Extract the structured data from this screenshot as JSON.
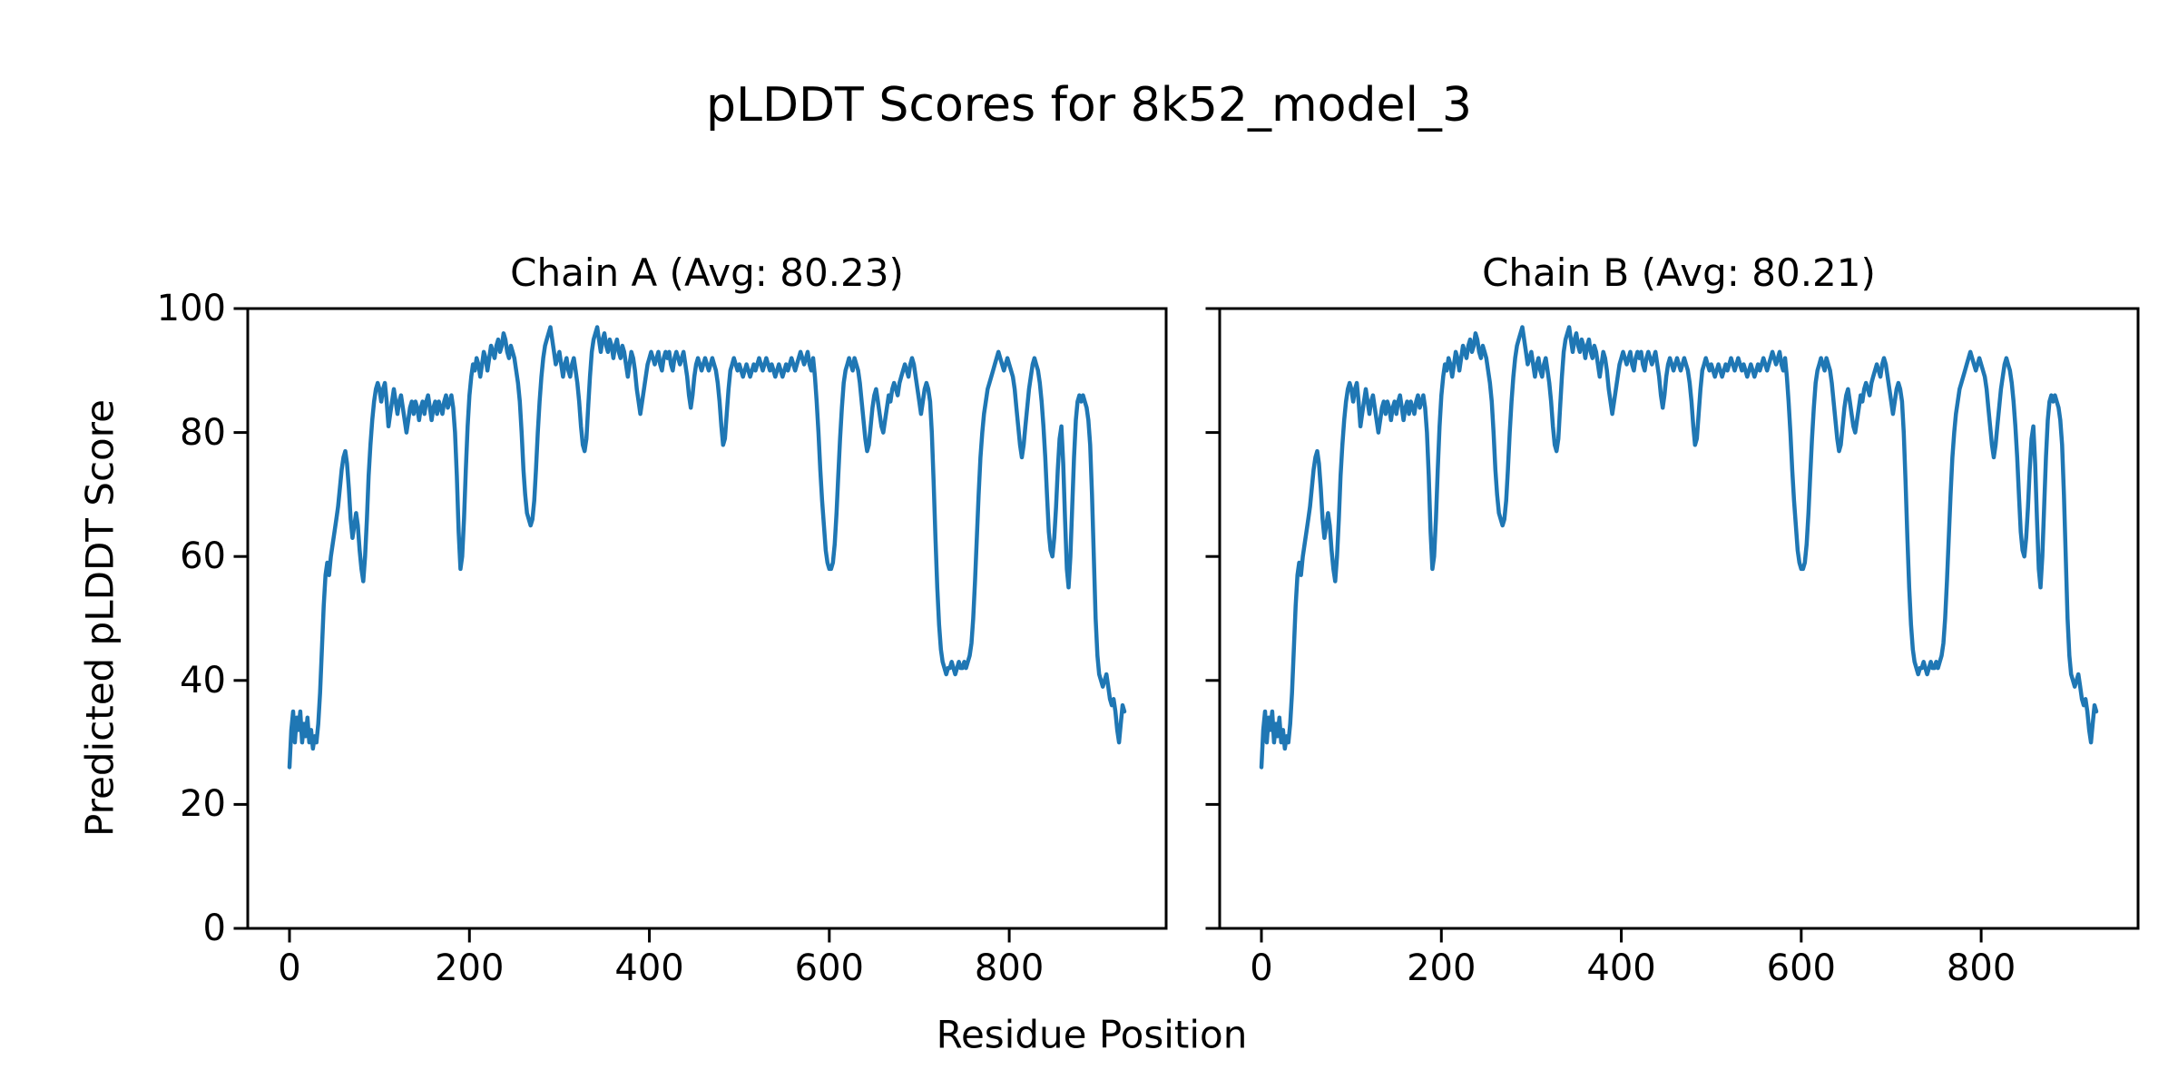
{
  "chart_data": {
    "type": "line",
    "suptitle": "pLDDT Scores for 8k52_model_3",
    "xlabel": "Residue Position",
    "ylabel": "Predicted pLDDT Score",
    "line_color": "#1f77b4",
    "text_color": "#000000",
    "grid": false,
    "legend": "none",
    "xticks": [
      0,
      200,
      400,
      600,
      800
    ],
    "yticks": [
      0,
      20,
      40,
      60,
      80,
      100
    ],
    "xlim": [
      -46.4,
      974.4
    ],
    "ylim": [
      0,
      100
    ],
    "x_start": 0,
    "x_step": 2,
    "subplots": [
      {
        "chain": "A",
        "title": "Chain A (Avg: 80.23)",
        "avg": 80.23,
        "values": [
          26,
          32,
          35,
          30,
          34,
          32,
          35,
          30,
          33,
          31,
          34,
          30,
          32,
          29,
          31,
          30,
          33,
          38,
          45,
          52,
          57,
          59,
          57,
          60,
          62,
          64,
          66,
          68,
          71,
          74,
          76,
          77,
          75,
          71,
          66,
          63,
          65,
          67,
          65,
          61,
          58,
          56,
          60,
          66,
          73,
          78,
          82,
          85,
          87,
          88,
          87,
          85,
          87,
          88,
          85,
          81,
          83,
          85,
          87,
          85,
          83,
          85,
          86,
          84,
          82,
          80,
          82,
          84,
          85,
          83,
          85,
          84,
          82,
          84,
          85,
          83,
          85,
          86,
          84,
          82,
          84,
          85,
          83,
          85,
          84,
          83,
          85,
          86,
          84,
          85,
          86,
          84,
          80,
          73,
          64,
          58,
          60,
          66,
          74,
          81,
          86,
          89,
          91,
          90,
          92,
          91,
          89,
          91,
          93,
          92,
          90,
          92,
          94,
          93,
          92,
          94,
          95,
          93,
          94,
          96,
          95,
          93,
          92,
          94,
          93,
          92,
          90,
          88,
          85,
          80,
          74,
          70,
          67,
          66,
          65,
          66,
          69,
          74,
          80,
          85,
          89,
          92,
          94,
          95,
          96,
          97,
          95,
          93,
          91,
          92,
          93,
          91,
          89,
          91,
          92,
          90,
          89,
          91,
          92,
          90,
          88,
          85,
          81,
          78,
          77,
          79,
          84,
          89,
          93,
          95,
          96,
          97,
          95,
          93,
          95,
          96,
          94,
          93,
          95,
          94,
          92,
          94,
          95,
          93,
          92,
          94,
          93,
          91,
          89,
          91,
          93,
          92,
          90,
          87,
          85,
          83,
          85,
          87,
          89,
          91,
          92,
          93,
          92,
          91,
          92,
          93,
          91,
          90,
          92,
          93,
          92,
          93,
          91,
          90,
          92,
          93,
          92,
          91,
          92,
          93,
          91,
          89,
          86,
          84,
          86,
          89,
          91,
          92,
          91,
          90,
          91,
          92,
          91,
          90,
          91,
          92,
          91,
          90,
          88,
          85,
          81,
          78,
          79,
          83,
          87,
          90,
          91,
          92,
          91,
          90,
          91,
          90,
          89,
          90,
          91,
          90,
          89,
          90,
          91,
          90,
          91,
          92,
          91,
          90,
          91,
          92,
          91,
          90,
          91,
          90,
          89,
          90,
          91,
          90,
          89,
          90,
          91,
          90,
          91,
          92,
          91,
          90,
          91,
          92,
          93,
          92,
          91,
          92,
          93,
          91,
          90,
          92,
          89,
          85,
          80,
          74,
          69,
          65,
          61,
          59,
          58,
          58,
          59,
          62,
          67,
          73,
          79,
          84,
          88,
          90,
          91,
          92,
          91,
          90,
          92,
          91,
          90,
          88,
          85,
          82,
          79,
          77,
          78,
          81,
          84,
          86,
          87,
          85,
          83,
          81,
          80,
          82,
          84,
          86,
          85,
          87,
          88,
          87,
          86,
          88,
          89,
          90,
          91,
          90,
          89,
          91,
          92,
          91,
          89,
          87,
          85,
          83,
          85,
          87,
          88,
          87,
          85,
          80,
          72,
          63,
          55,
          49,
          45,
          43,
          42,
          41,
          42,
          42,
          43,
          42,
          41,
          42,
          43,
          42,
          42,
          43,
          42,
          43,
          44,
          46,
          50,
          56,
          63,
          70,
          76,
          80,
          83,
          85,
          87,
          88,
          89,
          90,
          91,
          92,
          93,
          92,
          91,
          90,
          91,
          92,
          91,
          90,
          89,
          87,
          84,
          81,
          78,
          76,
          78,
          81,
          84,
          87,
          89,
          91,
          92,
          91,
          90,
          88,
          85,
          81,
          76,
          70,
          64,
          61,
          60,
          63,
          68,
          74,
          79,
          81,
          75,
          66,
          58,
          55,
          60,
          68,
          76,
          82,
          85,
          86,
          85,
          86,
          85,
          84,
          82,
          78,
          70,
          60,
          50,
          44,
          41,
          40,
          39,
          40,
          41,
          39,
          37,
          36,
          37,
          35,
          32,
          30,
          33,
          36,
          35
        ]
      },
      {
        "chain": "B",
        "title": "Chain B (Avg: 80.21)",
        "avg": 80.21,
        "values": [
          26,
          32,
          35,
          30,
          34,
          32,
          35,
          30,
          33,
          31,
          34,
          30,
          32,
          29,
          31,
          30,
          33,
          38,
          45,
          52,
          57,
          59,
          57,
          60,
          62,
          64,
          66,
          68,
          71,
          74,
          76,
          77,
          75,
          71,
          66,
          63,
          65,
          67,
          65,
          61,
          58,
          56,
          60,
          66,
          73,
          78,
          82,
          85,
          87,
          88,
          87,
          85,
          87,
          88,
          85,
          81,
          83,
          85,
          87,
          85,
          83,
          85,
          86,
          84,
          82,
          80,
          82,
          84,
          85,
          83,
          85,
          84,
          82,
          84,
          85,
          83,
          85,
          86,
          84,
          82,
          84,
          85,
          83,
          85,
          84,
          83,
          85,
          86,
          84,
          85,
          86,
          84,
          80,
          73,
          64,
          58,
          60,
          66,
          74,
          81,
          86,
          89,
          91,
          90,
          92,
          91,
          89,
          91,
          93,
          92,
          90,
          92,
          94,
          93,
          92,
          94,
          95,
          93,
          94,
          96,
          95,
          93,
          92,
          94,
          93,
          92,
          90,
          88,
          85,
          80,
          74,
          70,
          67,
          66,
          65,
          66,
          69,
          74,
          80,
          85,
          89,
          92,
          94,
          95,
          96,
          97,
          95,
          93,
          91,
          92,
          93,
          91,
          89,
          91,
          92,
          90,
          89,
          91,
          92,
          90,
          88,
          85,
          81,
          78,
          77,
          79,
          84,
          89,
          93,
          95,
          96,
          97,
          95,
          93,
          95,
          96,
          94,
          93,
          95,
          94,
          92,
          94,
          95,
          93,
          92,
          94,
          93,
          91,
          89,
          91,
          93,
          92,
          90,
          87,
          85,
          83,
          85,
          87,
          89,
          91,
          92,
          93,
          92,
          91,
          92,
          93,
          91,
          90,
          92,
          93,
          92,
          93,
          91,
          90,
          92,
          93,
          92,
          91,
          92,
          93,
          91,
          89,
          86,
          84,
          86,
          89,
          91,
          92,
          91,
          90,
          91,
          92,
          91,
          90,
          91,
          92,
          91,
          90,
          88,
          85,
          81,
          78,
          79,
          83,
          87,
          90,
          91,
          92,
          91,
          90,
          91,
          90,
          89,
          90,
          91,
          90,
          89,
          90,
          91,
          90,
          91,
          92,
          91,
          90,
          91,
          92,
          91,
          90,
          91,
          90,
          89,
          90,
          91,
          90,
          89,
          90,
          91,
          90,
          91,
          92,
          91,
          90,
          91,
          92,
          93,
          92,
          91,
          92,
          93,
          91,
          90,
          92,
          89,
          85,
          80,
          74,
          69,
          65,
          61,
          59,
          58,
          58,
          59,
          62,
          67,
          73,
          79,
          84,
          88,
          90,
          91,
          92,
          91,
          90,
          92,
          91,
          90,
          88,
          85,
          82,
          79,
          77,
          78,
          81,
          84,
          86,
          87,
          85,
          83,
          81,
          80,
          82,
          84,
          86,
          85,
          87,
          88,
          87,
          86,
          88,
          89,
          90,
          91,
          90,
          89,
          91,
          92,
          91,
          89,
          87,
          85,
          83,
          85,
          87,
          88,
          87,
          85,
          80,
          72,
          63,
          55,
          49,
          45,
          43,
          42,
          41,
          42,
          42,
          43,
          42,
          41,
          42,
          43,
          42,
          42,
          43,
          42,
          43,
          44,
          46,
          50,
          56,
          63,
          70,
          76,
          80,
          83,
          85,
          87,
          88,
          89,
          90,
          91,
          92,
          93,
          92,
          91,
          90,
          91,
          92,
          91,
          90,
          89,
          87,
          84,
          81,
          78,
          76,
          78,
          81,
          84,
          87,
          89,
          91,
          92,
          91,
          90,
          88,
          85,
          81,
          76,
          70,
          64,
          61,
          60,
          63,
          68,
          74,
          79,
          81,
          75,
          66,
          58,
          55,
          60,
          68,
          76,
          82,
          85,
          86,
          85,
          86,
          85,
          84,
          82,
          78,
          70,
          60,
          50,
          44,
          41,
          40,
          39,
          40,
          41,
          39,
          37,
          36,
          37,
          35,
          32,
          30,
          33,
          36,
          35
        ]
      }
    ]
  }
}
